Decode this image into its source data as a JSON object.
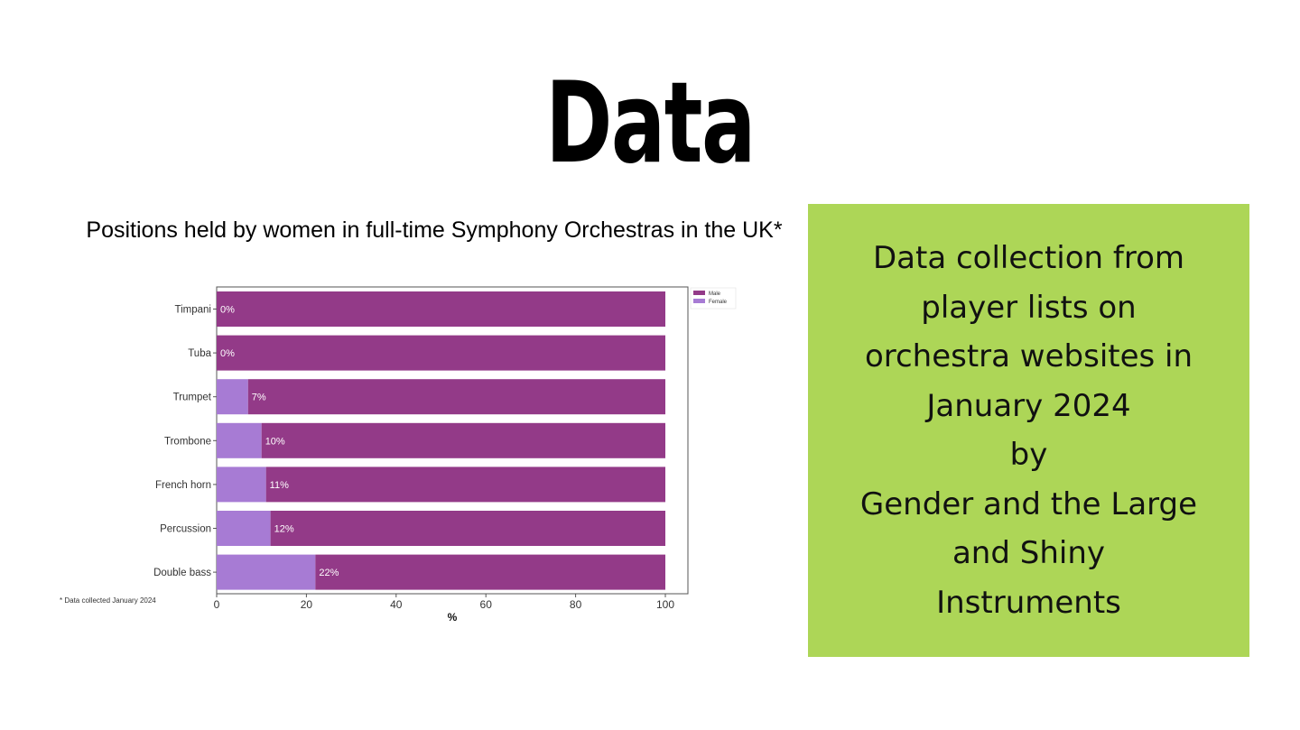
{
  "slide": {
    "title": "Data"
  },
  "chart_data": {
    "type": "bar",
    "orientation": "horizontal",
    "stacked": true,
    "title": "Positions held by women in full-time Symphony Orchestras in the UK*",
    "xlabel": "%",
    "ylabel": "",
    "xlim": [
      0,
      100
    ],
    "xticks": [
      "0",
      "20",
      "40",
      "60",
      "80",
      "100"
    ],
    "categories": [
      "Timpani",
      "Tuba",
      "Trumpet",
      "Trombone",
      "French horn",
      "Percussion",
      "Double bass"
    ],
    "series": [
      {
        "name": "Female",
        "values": [
          0,
          0,
          7,
          10,
          11,
          12,
          22
        ],
        "color": "#a77bd4"
      },
      {
        "name": "Male",
        "values": [
          100,
          100,
          93,
          90,
          89,
          88,
          78
        ],
        "color": "#933a88"
      }
    ],
    "data_labels": [
      "0%",
      "0%",
      "7%",
      "10%",
      "11%",
      "12%",
      "22%"
    ],
    "legend": {
      "position": "top-right",
      "order": [
        "Male",
        "Female"
      ]
    },
    "grid": false,
    "footnote": "* Data collected January 2024"
  },
  "info_box": {
    "lines": [
      "Data collection from",
      "player lists on",
      "orchestra websites in",
      "January 2024",
      "by",
      "Gender and the Large",
      "and Shiny",
      "Instruments"
    ],
    "background": "#add657"
  }
}
